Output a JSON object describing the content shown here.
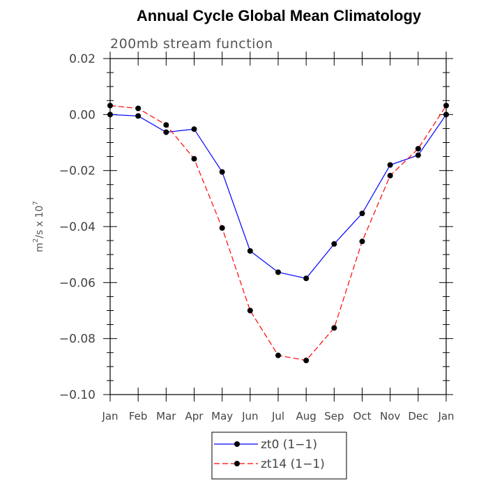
{
  "chart_data": {
    "type": "line",
    "title": "Annual Cycle Global Mean Climatology",
    "subtitle": "200mb stream function",
    "ylabel_base": "m",
    "ylabel_sup1": "2",
    "ylabel_mid": "/s x 10",
    "ylabel_sup2": "7",
    "categories": [
      "Jan",
      "Feb",
      "Mar",
      "Apr",
      "May",
      "Jun",
      "Jul",
      "Aug",
      "Sep",
      "Oct",
      "Nov",
      "Dec",
      "Jan"
    ],
    "ylim": [
      -0.1,
      0.02
    ],
    "ytick_values": [
      0.02,
      0.0,
      -0.02,
      -0.04,
      -0.06,
      -0.08,
      -0.1
    ],
    "ytick_labels": [
      "0.02",
      "0.00",
      "−0.02",
      "−0.04",
      "−0.06",
      "−0.08",
      "−0.10"
    ],
    "series": [
      {
        "name": "zt0 (1−1)",
        "color": "#0000ff",
        "dash": "solid",
        "values": [
          0.0,
          -0.0005,
          -0.0063,
          -0.0052,
          -0.0205,
          -0.0487,
          -0.0563,
          -0.0585,
          -0.0462,
          -0.0353,
          -0.018,
          -0.0145,
          0.0
        ]
      },
      {
        "name": "zt14 (1−1)",
        "color": "#ff0000",
        "dash": "dashed",
        "values": [
          0.0032,
          0.0022,
          -0.0037,
          -0.0158,
          -0.0405,
          -0.07,
          -0.086,
          -0.0878,
          -0.0762,
          -0.0453,
          -0.0218,
          -0.0122,
          0.0032
        ]
      }
    ],
    "legend_position": "bottom",
    "grid": false
  }
}
